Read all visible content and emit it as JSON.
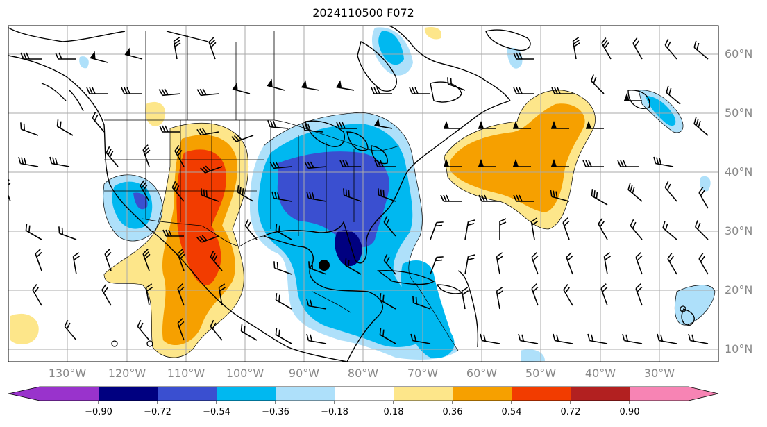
{
  "title": "2024110500 F072",
  "lat_labels": [
    "60°N",
    "50°N",
    "40°N",
    "30°N",
    "20°N",
    "10°N"
  ],
  "lon_labels": [
    "130°W",
    "120°W",
    "110°W",
    "100°W",
    "90°W",
    "80°W",
    "70°W",
    "60°W",
    "50°W",
    "40°W",
    "30°W"
  ],
  "colorbar": {
    "ticks": [
      "−0.90",
      "−0.72",
      "−0.54",
      "−0.36",
      "−0.18",
      "0.18",
      "0.36",
      "0.54",
      "0.72",
      "0.90"
    ],
    "colors": [
      "#9933cc",
      "#000080",
      "#3a4fd0",
      "#00b8f0",
      "#aee0fa",
      "#ffffff",
      "#fde68a",
      "#f6a000",
      "#f23c00",
      "#b22020",
      "#f784b4"
    ]
  }
}
